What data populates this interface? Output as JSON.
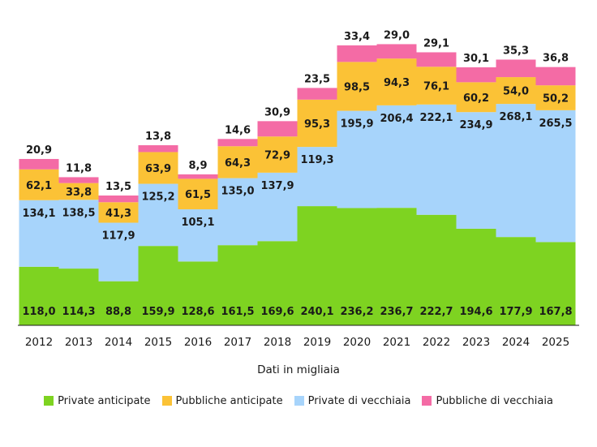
{
  "chart_data": {
    "type": "bar",
    "stacked": true,
    "categories": [
      "2012",
      "2013",
      "2014",
      "2015",
      "2016",
      "2017",
      "2018",
      "2019",
      "2020",
      "2021",
      "2022",
      "2023",
      "2024",
      "2025"
    ],
    "series": [
      {
        "name": "Private anticipate",
        "color": "#7ed321",
        "values": [
          118.0,
          114.3,
          88.8,
          159.9,
          128.6,
          161.5,
          169.6,
          240.1,
          236.2,
          236.7,
          222.7,
          194.6,
          177.9,
          167.8
        ],
        "labels": [
          "118,0",
          "114,3",
          "88,8",
          "159,9",
          "128,6",
          "161,5",
          "169,6",
          "240,1",
          "236,2",
          "236,7",
          "222,7",
          "194,6",
          "177,9",
          "167,8"
        ]
      },
      {
        "name": "Private di vecchiaia",
        "color": "#a7d4fb",
        "values": [
          134.1,
          138.5,
          117.9,
          125.2,
          105.1,
          135.0,
          137.9,
          119.3,
          195.9,
          206.4,
          222.1,
          234.9,
          268.1,
          265.5
        ],
        "labels": [
          "134,1",
          "138,5",
          "117,9",
          "125,2",
          "105,1",
          "135,0",
          "137,9",
          "119,3",
          "195,9",
          "206,4",
          "222,1",
          "234,9",
          "268,1",
          "265,5"
        ]
      },
      {
        "name": "Pubbliche anticipate",
        "color": "#fbc236",
        "values": [
          62.1,
          33.8,
          41.3,
          63.9,
          61.5,
          64.3,
          72.9,
          95.3,
          98.5,
          94.3,
          76.1,
          60.2,
          54.0,
          50.2
        ],
        "labels": [
          "62,1",
          "33,8",
          "41,3",
          "63,9",
          "61,5",
          "64,3",
          "72,9",
          "95,3",
          "98,5",
          "94,3",
          "76,1",
          "60,2",
          "54,0",
          "50,2"
        ]
      },
      {
        "name": "Pubbliche di vecchiaia",
        "color": "#f46ba5",
        "values": [
          20.9,
          11.8,
          13.5,
          13.8,
          8.9,
          14.6,
          30.9,
          23.5,
          33.4,
          29.0,
          29.1,
          30.1,
          35.3,
          36.8
        ],
        "labels": [
          "20,9",
          "11,8",
          "13,5",
          "13,8",
          "8,9",
          "14,6",
          "30,9",
          "23,5",
          "33,4",
          "29,0",
          "29,1",
          "30,1",
          "35,3",
          "36,8"
        ]
      }
    ],
    "xlabel": "Dati in migliaia",
    "ylabel": "",
    "ylim": [
      0,
      590
    ],
    "grid": false,
    "legend": {
      "position": "bottom",
      "entries": [
        {
          "name": "Private anticipate",
          "color": "#7ed321"
        },
        {
          "name": "Pubbliche anticipate",
          "color": "#fbc236"
        },
        {
          "name": "Private di vecchiaia",
          "color": "#a7d4fb"
        },
        {
          "name": "Pubbliche di vecchiaia",
          "color": "#f46ba5"
        }
      ]
    }
  }
}
